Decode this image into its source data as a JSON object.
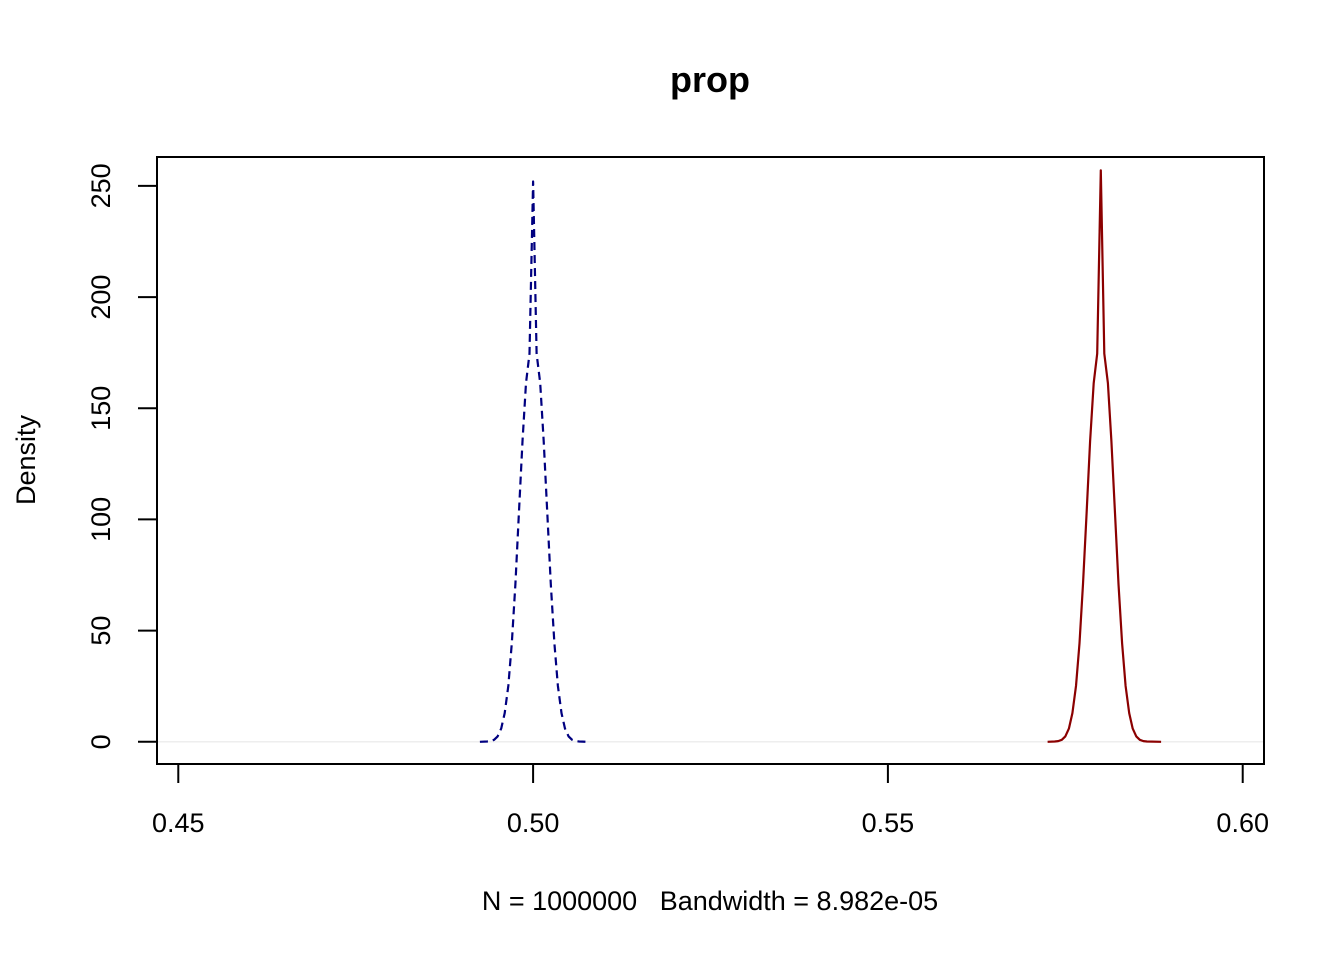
{
  "chart_data": {
    "type": "line",
    "title": "prop",
    "xlabel": "N = 1000000   Bandwidth = 8.982e-05",
    "ylabel": "Density",
    "xlim": [
      0.447,
      0.603
    ],
    "ylim": [
      -10,
      263
    ],
    "xticks": [
      {
        "value": 0.45,
        "label": "0.45"
      },
      {
        "value": 0.5,
        "label": "0.50"
      },
      {
        "value": 0.55,
        "label": "0.55"
      },
      {
        "value": 0.6,
        "label": "0.60"
      }
    ],
    "yticks": [
      {
        "value": 0,
        "label": "0"
      },
      {
        "value": 50,
        "label": "50"
      },
      {
        "value": 100,
        "label": "100"
      },
      {
        "value": 150,
        "label": "150"
      },
      {
        "value": 200,
        "label": "200"
      },
      {
        "value": 250,
        "label": "250"
      }
    ],
    "grid": false,
    "baseline": {
      "y": 0,
      "color": "#eeeeee"
    },
    "series": [
      {
        "color": "#000080",
        "line_style": "dashed",
        "x": [
          0.4925,
          0.4935,
          0.494,
          0.4945,
          0.495,
          0.4955,
          0.496,
          0.4965,
          0.497,
          0.4975,
          0.498,
          0.4985,
          0.499,
          0.4995,
          0.5,
          0.5005,
          0.501,
          0.5015,
          0.502,
          0.5025,
          0.503,
          0.5035,
          0.504,
          0.5045,
          0.505,
          0.5055,
          0.506,
          0.5065,
          0.5075
        ],
        "y": [
          0.0,
          0.1,
          0.3,
          0.9,
          2.4,
          5.9,
          12.9,
          25.1,
          44.3,
          70.9,
          102.8,
          135.2,
          161.3,
          174.6,
          252.0,
          174.6,
          161.3,
          135.2,
          102.8,
          70.9,
          44.3,
          25.1,
          12.9,
          5.9,
          2.4,
          0.9,
          0.3,
          0.1,
          0.0
        ]
      },
      {
        "color": "#8b0000",
        "line_style": "solid",
        "x": [
          0.5725,
          0.5735,
          0.574,
          0.5745,
          0.575,
          0.5755,
          0.576,
          0.5765,
          0.577,
          0.5775,
          0.578,
          0.5785,
          0.579,
          0.5795,
          0.58,
          0.5805,
          0.581,
          0.5815,
          0.582,
          0.5825,
          0.583,
          0.5835,
          0.584,
          0.5845,
          0.585,
          0.5855,
          0.586,
          0.5865,
          0.5885
        ],
        "y": [
          0.0,
          0.1,
          0.3,
          0.9,
          2.4,
          5.9,
          12.9,
          25.1,
          44.3,
          70.9,
          102.8,
          135.2,
          161.3,
          174.6,
          257.0,
          174.6,
          161.3,
          135.2,
          102.8,
          70.9,
          44.3,
          25.1,
          12.9,
          5.9,
          2.4,
          0.9,
          0.3,
          0.1,
          0.0
        ]
      }
    ]
  }
}
